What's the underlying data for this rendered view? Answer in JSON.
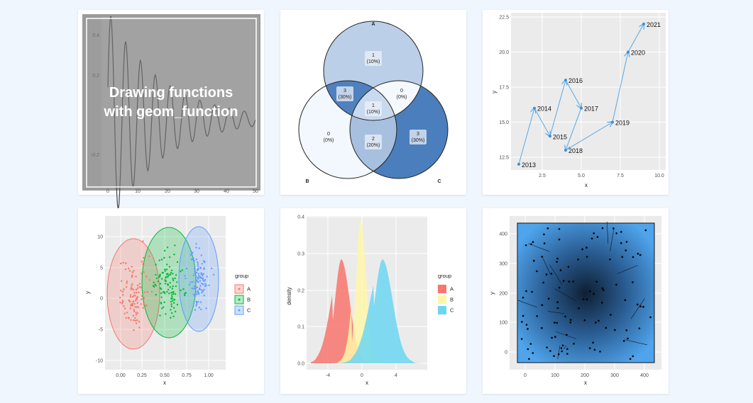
{
  "cards": [
    {
      "title_lines": [
        "Drawing functions",
        "with geom_function"
      ],
      "yticks": [
        "0.4",
        "0.2",
        "-0.2"
      ],
      "xticks": [
        "0",
        "10",
        "20",
        "30",
        "40",
        "50"
      ]
    },
    {
      "sets": [
        "A",
        "B",
        "C"
      ],
      "regions": [
        {
          "count": 1,
          "share": "(10%)"
        },
        {
          "count": 3,
          "share": "(30%)"
        },
        {
          "count": 0,
          "share": "(0%)"
        },
        {
          "count": 1,
          "share": "(10%)"
        },
        {
          "count": 0,
          "share": "(0%)"
        },
        {
          "count": 2,
          "share": "(20%)"
        },
        {
          "count": 3,
          "share": "(30%)"
        }
      ]
    },
    {
      "points": [
        {
          "x": 1,
          "y": 12,
          "label": 2013
        },
        {
          "x": 2,
          "y": 16,
          "label": 2014
        },
        {
          "x": 3,
          "y": 14,
          "label": 2015
        },
        {
          "x": 4,
          "y": 18,
          "label": 2016
        },
        {
          "x": 5,
          "y": 16,
          "label": 2017
        },
        {
          "x": 4,
          "y": 13,
          "label": 2018
        },
        {
          "x": 7,
          "y": 15,
          "label": 2019
        },
        {
          "x": 8,
          "y": 20,
          "label": 2020
        },
        {
          "x": 9,
          "y": 22,
          "label": 2021
        }
      ],
      "xticks": [
        2.5,
        {
          "value": 5,
          "label": "5.0"
        },
        7.5,
        {
          "value": 10,
          "label": "10.0"
        }
      ],
      "yticks": [
        12.5,
        {
          "value": 15,
          "label": "15.0"
        },
        17.5,
        {
          "value": 20,
          "label": "20.0"
        },
        22.5
      ],
      "x_label": "x",
      "y_label": "y"
    },
    {
      "yticks": [
        "10",
        "5",
        "0",
        "-5",
        "-10"
      ],
      "xticks": [
        "0.00",
        "0.25",
        "0.50",
        "0.75",
        "1.00"
      ],
      "x_label": "x",
      "y_label": "y",
      "legend_title": "group",
      "legend": [
        "A",
        "B",
        "C"
      ]
    },
    {
      "yticks": [
        "0.4",
        "0.3",
        "0.2",
        "0.1",
        "0.0"
      ],
      "xticks": [
        "-4",
        "0",
        "4"
      ],
      "x_label": "x",
      "y_label": "density",
      "legend_title": "group",
      "legend": [
        "A",
        "B",
        "C"
      ]
    },
    {
      "yticks": [
        "400",
        "300",
        "200",
        "100",
        "0"
      ],
      "xticks": [
        "0",
        "100",
        "200",
        "300",
        "400"
      ],
      "x_label": "x",
      "y_label": "y"
    }
  ]
}
